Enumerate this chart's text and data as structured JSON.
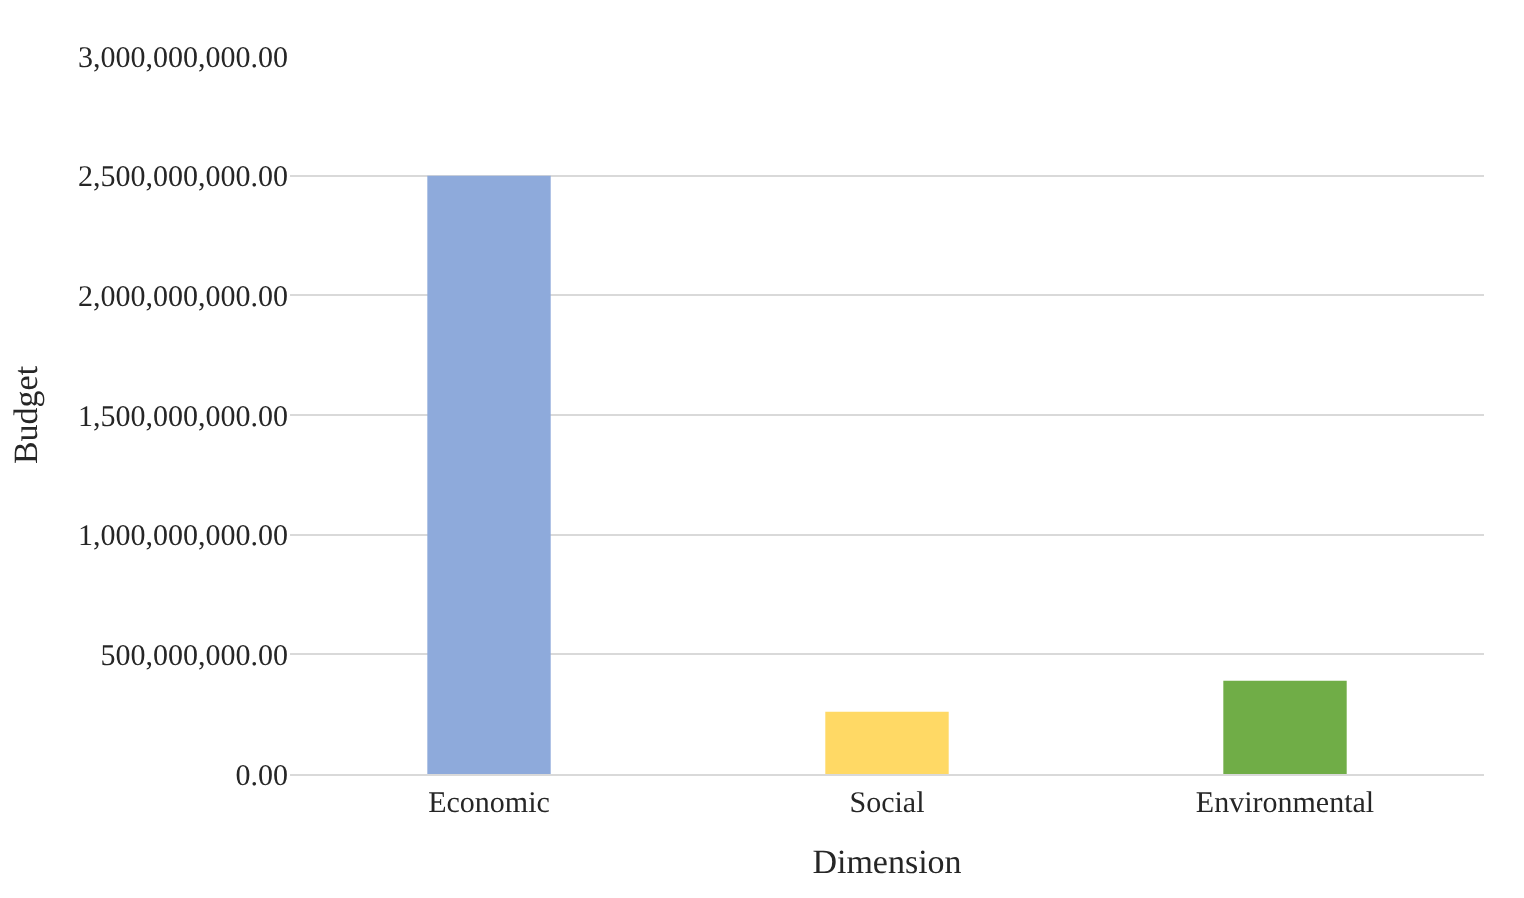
{
  "chart_data": {
    "type": "bar",
    "xlabel": "Dimension",
    "ylabel": "Budget",
    "categories": [
      "Economic",
      "Social",
      "Environmental"
    ],
    "values": [
      2500000000,
      260000000,
      390000000
    ],
    "colors": [
      "#8eaadb",
      "#ffd965",
      "#70ad47"
    ],
    "ylim": [
      0,
      3000000000
    ],
    "yticks": [
      {
        "value": 0,
        "label": "0.00"
      },
      {
        "value": 500000000,
        "label": "500,000,000.00"
      },
      {
        "value": 1000000000,
        "label": "1,000,000,000.00"
      },
      {
        "value": 1500000000,
        "label": "1,500,000,000.00"
      },
      {
        "value": 2000000000,
        "label": "2,000,000,000.00"
      },
      {
        "value": 2500000000,
        "label": "2,500,000,000.00"
      },
      {
        "value": 3000000000,
        "label": "3,000,000,000.00"
      }
    ],
    "grid": "y"
  }
}
